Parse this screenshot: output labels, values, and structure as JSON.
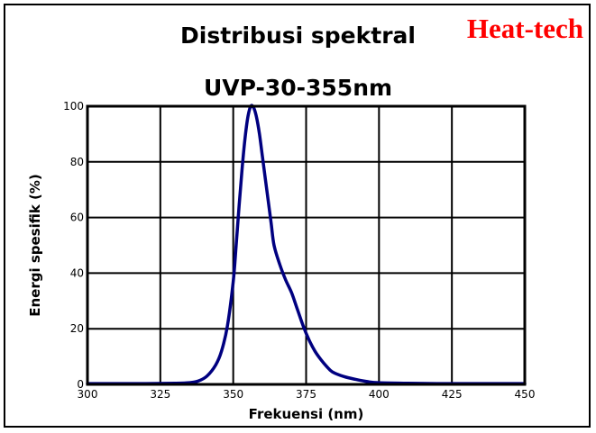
{
  "brand": "Heat-tech",
  "chart_data": {
    "type": "line",
    "title": "Distribusi spektral",
    "subtitle": "UVP-30-355nm",
    "xlabel": "Frekuensi (nm)",
    "ylabel": "Energi spesifik (%)",
    "xlim": [
      300,
      450
    ],
    "ylim": [
      0,
      100
    ],
    "xticks": [
      300,
      325,
      350,
      375,
      400,
      425,
      450
    ],
    "yticks": [
      0,
      20,
      40,
      60,
      80,
      100
    ],
    "grid": true,
    "legend": "none",
    "series": [
      {
        "color": "#000080",
        "x": [
          300,
          310,
          320,
          330,
          335,
          338,
          341,
          344,
          346,
          348,
          350,
          351,
          352,
          353,
          354,
          355,
          356,
          357,
          358,
          359,
          360,
          361,
          362,
          363,
          364,
          366,
          368,
          370,
          372,
          374,
          376,
          378,
          380,
          382,
          384,
          388,
          392,
          396,
          400,
          410,
          420,
          430,
          440,
          450
        ],
        "y": [
          0.3,
          0.3,
          0.3,
          0.4,
          0.6,
          1.2,
          3,
          7,
          12,
          21,
          37,
          50,
          64,
          77,
          88,
          96,
          100,
          99.5,
          96,
          90,
          82,
          74,
          66,
          58,
          50,
          43,
          37.5,
          33,
          27,
          21,
          16,
          12,
          9,
          6.5,
          4.5,
          2.8,
          1.8,
          1.0,
          0.6,
          0.4,
          0.3,
          0.3,
          0.3,
          0.3
        ]
      }
    ]
  }
}
